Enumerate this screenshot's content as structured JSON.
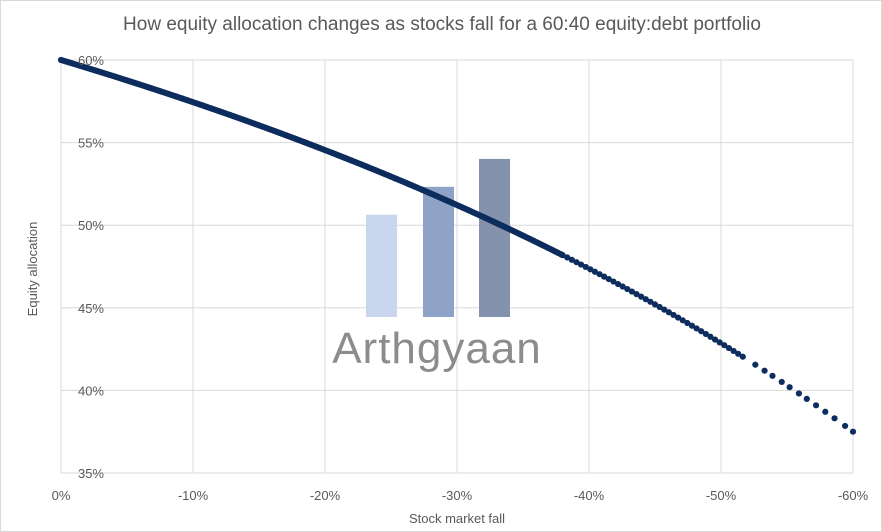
{
  "chart_data": {
    "type": "scatter",
    "title": "How equity allocation changes as stocks fall for a 60:40 equity:debt portfolio",
    "xlabel": "Stock market fall",
    "ylabel": "Equity allocation",
    "xlim": [
      0,
      -60
    ],
    "ylim": [
      35,
      60
    ],
    "x_ticks": [
      "0%",
      "-10%",
      "-20%",
      "-30%",
      "-40%",
      "-50%",
      "-60%"
    ],
    "y_ticks": [
      "35%",
      "40%",
      "45%",
      "50%",
      "55%",
      "60%"
    ],
    "grid": true,
    "legend": "none",
    "series": [
      {
        "color": "#0d2d5e",
        "formula": "equity_allocation = 60*(1+fall) / (60*(1+fall) + 40)",
        "x_range": [
          0,
          -60
        ],
        "x": [
          0,
          -5,
          -10,
          -15,
          -20,
          -25,
          -30,
          -35,
          -40,
          -45,
          -50,
          -55,
          -60
        ],
        "y": [
          60.0,
          58.8,
          57.4,
          56.0,
          54.5,
          52.9,
          51.2,
          49.4,
          47.4,
          45.2,
          42.9,
          40.3,
          37.5
        ]
      }
    ]
  },
  "watermark": {
    "text": "Arthgyaan",
    "bar_values": [
      0.55,
      0.7,
      0.85
    ],
    "bar_colors": [
      "#c9d6ee",
      "#8fa3c7",
      "#8592ad"
    ]
  }
}
